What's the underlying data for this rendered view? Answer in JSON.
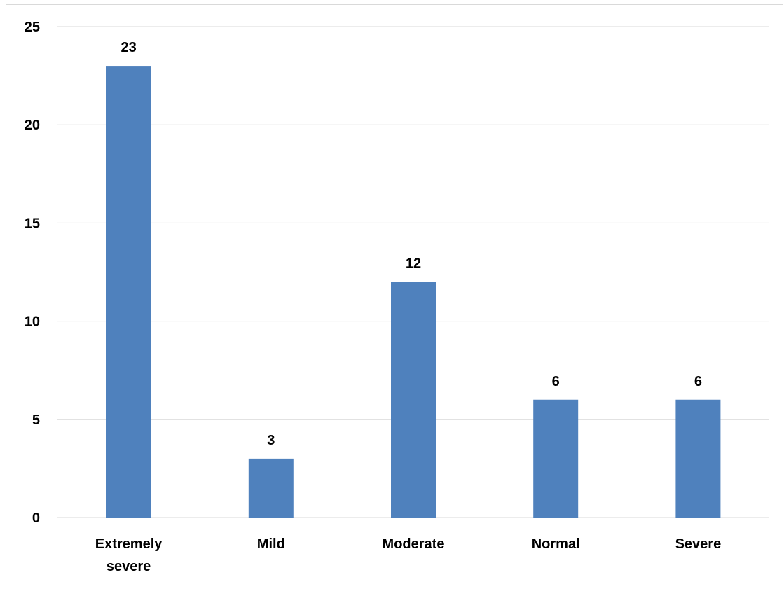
{
  "chart_data": {
    "type": "bar",
    "categories": [
      [
        "Extremely",
        "severe"
      ],
      [
        "Mild"
      ],
      [
        "Moderate"
      ],
      [
        "Normal"
      ],
      [
        "Severe"
      ]
    ],
    "values": [
      23,
      3,
      12,
      6,
      6
    ],
    "data_labels": [
      "23",
      "3",
      "12",
      "6",
      "6"
    ],
    "ylim": [
      0,
      25
    ],
    "yticks": [
      0,
      5,
      10,
      15,
      20,
      25
    ],
    "ytick_labels": [
      "0",
      "5",
      "10",
      "15",
      "20",
      "25"
    ],
    "title": "",
    "xlabel": "",
    "ylabel": "",
    "grid": true,
    "legend": "none",
    "bar_color": "#4f81bd",
    "grid_color": "#d9d9d9"
  }
}
